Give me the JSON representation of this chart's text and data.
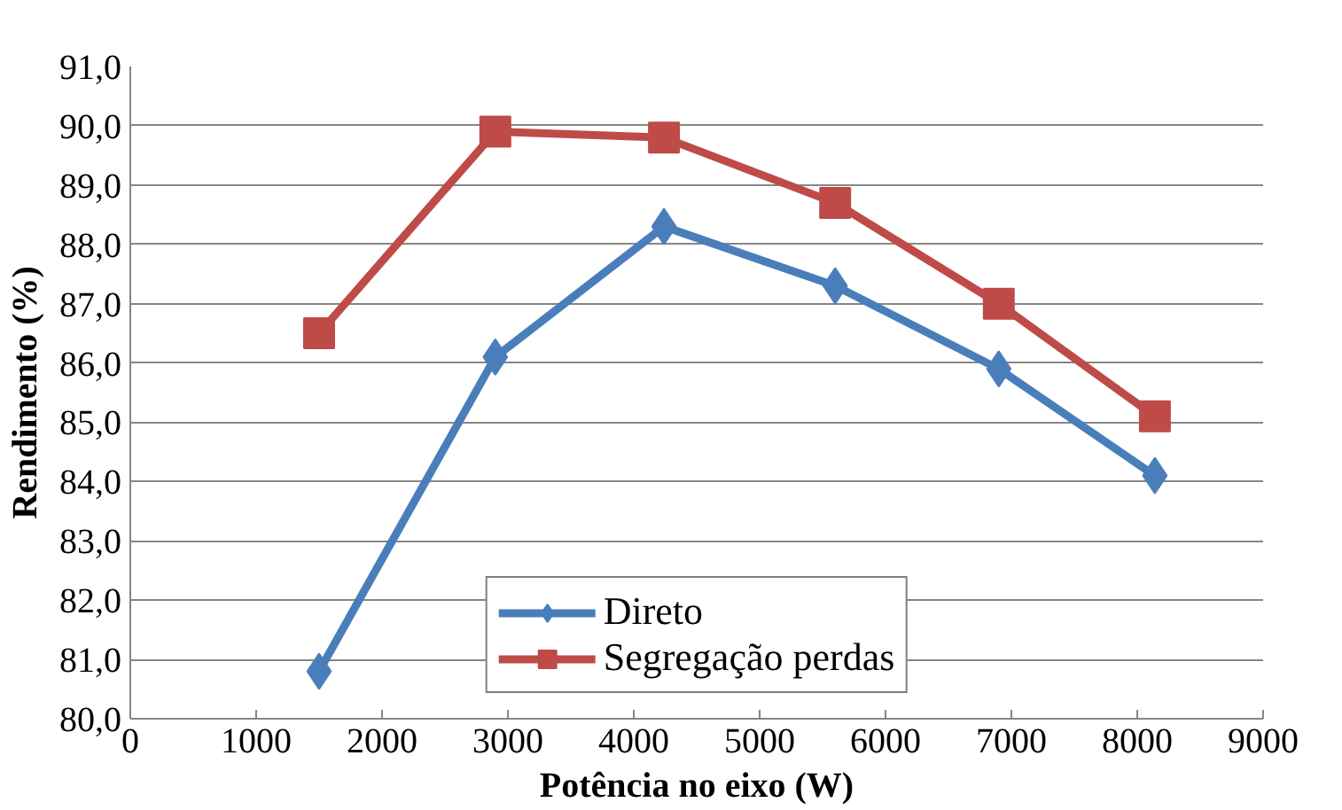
{
  "chart_data": {
    "type": "line",
    "xlabel": "Potência no eixo (W)",
    "ylabel": "Rendimento (%)",
    "x": [
      1500,
      2900,
      4240,
      5600,
      6900,
      8140
    ],
    "series": [
      {
        "name": "Direto",
        "color": "#4a7ebb",
        "marker": "diamond",
        "values": [
          80.8,
          86.1,
          88.3,
          87.3,
          85.9,
          84.1
        ]
      },
      {
        "name": "Segregação perdas",
        "color": "#be4b48",
        "marker": "square",
        "values": [
          86.5,
          89.9,
          89.8,
          88.7,
          87.0,
          85.1
        ]
      }
    ],
    "xlim": [
      0,
      9000
    ],
    "xticks": [
      0,
      1000,
      2000,
      3000,
      4000,
      5000,
      6000,
      7000,
      8000,
      9000
    ],
    "ylim": [
      80,
      91
    ],
    "yticks": [
      {
        "value": 80,
        "label": "80,0"
      },
      {
        "value": 81,
        "label": "81,0"
      },
      {
        "value": 82,
        "label": "82,0"
      },
      {
        "value": 83,
        "label": "83,0"
      },
      {
        "value": 84,
        "label": "84,0"
      },
      {
        "value": 85,
        "label": "85,0"
      },
      {
        "value": 86,
        "label": "86,0"
      },
      {
        "value": 87,
        "label": "87,0"
      },
      {
        "value": 88,
        "label": "88,0"
      },
      {
        "value": 89,
        "label": "89,0"
      },
      {
        "value": 90,
        "label": "90,0"
      },
      {
        "value": 91,
        "label": "91,0"
      }
    ],
    "grid": "y",
    "legend": "bottom",
    "line_style": "solid"
  }
}
